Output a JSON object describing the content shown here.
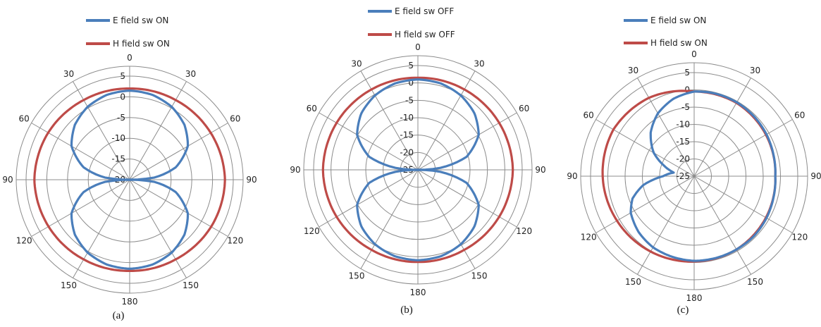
{
  "chart_data": [
    {
      "type": "polar-line",
      "caption": "(a)",
      "rlim": [
        -20,
        5
      ],
      "ring_ticks": [
        5,
        0,
        -5,
        -10,
        -15,
        -20
      ],
      "angle_ticks": [
        0,
        30,
        60,
        90,
        120,
        150,
        180,
        150,
        120,
        90,
        60,
        30
      ],
      "angle_tick_labels": [
        "0",
        "30",
        "60",
        "90",
        "120",
        "150",
        "180",
        "150",
        "120",
        "90",
        "60",
        "30"
      ],
      "legend": [
        "E field sw ON",
        "H field sw ON"
      ],
      "series": [
        {
          "name": "E field sw ON",
          "color": "#4a7ebb",
          "theta": [
            0,
            15,
            30,
            45,
            60,
            75,
            85,
            90,
            95,
            105,
            120,
            135,
            150,
            165,
            180,
            195,
            210,
            225,
            240,
            255,
            265,
            270,
            275,
            285,
            300,
            315,
            330,
            345,
            360
          ],
          "r": [
            1.5,
            1.2,
            0.3,
            -1.3,
            -3.8,
            -8.5,
            -14,
            -20,
            -14,
            -8.5,
            -3.8,
            -1.3,
            0.3,
            1.2,
            1.5,
            1.2,
            0.3,
            -1.3,
            -3.8,
            -8.5,
            -14,
            -20,
            -14,
            -8.5,
            -3.8,
            -1.3,
            0.3,
            1.2,
            1.5
          ]
        },
        {
          "name": "H field sw ON",
          "color": "#be4b48",
          "theta": [
            0,
            30,
            60,
            90,
            120,
            150,
            180,
            210,
            240,
            270,
            300,
            330,
            360
          ],
          "r": [
            2.0,
            2.2,
            2.6,
            3.0,
            2.7,
            2.2,
            2.0,
            2.2,
            2.6,
            3.0,
            2.7,
            2.2,
            2.0
          ]
        }
      ]
    },
    {
      "type": "polar-line",
      "caption": "(b)",
      "rlim": [
        -25,
        5
      ],
      "ring_ticks": [
        5,
        0,
        -5,
        -10,
        -15,
        -20,
        -25
      ],
      "angle_ticks": [
        0,
        30,
        60,
        90,
        120,
        150,
        180,
        150,
        120,
        90,
        60,
        30
      ],
      "angle_tick_labels": [
        "0",
        "30",
        "60",
        "90",
        "120",
        "150",
        "180",
        "150",
        "120",
        "90",
        "60",
        "30"
      ],
      "legend": [
        "E field sw OFF",
        "H field sw OFF"
      ],
      "series": [
        {
          "name": "E field sw OFF",
          "color": "#4a7ebb",
          "theta": [
            0,
            15,
            30,
            45,
            60,
            75,
            85,
            90,
            95,
            105,
            120,
            135,
            150,
            165,
            180,
            195,
            210,
            225,
            240,
            255,
            265,
            270,
            275,
            285,
            300,
            315,
            330,
            345,
            360
          ],
          "r": [
            1.0,
            0.7,
            -0.3,
            -2.0,
            -4.8,
            -10.5,
            -18.5,
            -25,
            -18.5,
            -10.5,
            -4.8,
            -2.0,
            -0.3,
            0.7,
            1.0,
            0.7,
            -0.3,
            -2.0,
            -4.8,
            -10.5,
            -18.5,
            -25,
            -18.5,
            -10.5,
            -4.8,
            -2.0,
            -0.3,
            0.7,
            1.0
          ]
        },
        {
          "name": "H field sw OFF",
          "color": "#be4b48",
          "theta": [
            0,
            30,
            60,
            90,
            120,
            150,
            180,
            210,
            240,
            270,
            300,
            330,
            360
          ],
          "r": [
            1.5,
            1.7,
            2.0,
            2.3,
            2.0,
            1.6,
            1.5,
            1.6,
            2.0,
            2.3,
            2.0,
            1.7,
            1.5
          ]
        }
      ]
    },
    {
      "type": "polar-line",
      "caption": "(c)",
      "rlim": [
        -25,
        5
      ],
      "ring_ticks": [
        5,
        0,
        -5,
        -10,
        -15,
        -20,
        -25
      ],
      "angle_ticks": [
        0,
        30,
        60,
        90,
        120,
        150,
        180,
        150,
        120,
        90,
        60,
        30
      ],
      "angle_tick_labels": [
        "0",
        "30",
        "60",
        "90",
        "120",
        "150",
        "180",
        "150",
        "120",
        "90",
        "60",
        "30"
      ],
      "legend": [
        "E field sw ON",
        "H field sw ON"
      ],
      "series": [
        {
          "name": "E field sw ON",
          "color": "#4a7ebb",
          "theta": [
            0,
            15,
            30,
            45,
            60,
            75,
            90,
            105,
            120,
            135,
            150,
            165,
            180,
            195,
            210,
            225,
            240,
            250,
            260,
            270,
            280,
            290,
            300,
            315,
            330,
            345,
            360
          ],
          "r": [
            -0.5,
            -0.3,
            -0.3,
            -0.5,
            -0.8,
            -1.2,
            -1.5,
            -1.2,
            -0.8,
            -0.5,
            -0.5,
            -0.5,
            -0.5,
            -0.8,
            -1.2,
            -2.2,
            -3.8,
            -6.0,
            -10.0,
            -16.0,
            -19.0,
            -15.5,
            -11.5,
            -7.2,
            -4.0,
            -1.8,
            -0.5
          ]
        },
        {
          "name": "H field sw ON",
          "color": "#be4b48",
          "theta": [
            0,
            30,
            60,
            90,
            120,
            150,
            180,
            210,
            240,
            270,
            300,
            330,
            360
          ],
          "r": [
            -0.5,
            -0.5,
            -1.0,
            -1.5,
            -1.0,
            -0.5,
            -0.3,
            0.2,
            0.8,
            1.5,
            2.0,
            1.2,
            -0.5
          ]
        }
      ]
    }
  ]
}
